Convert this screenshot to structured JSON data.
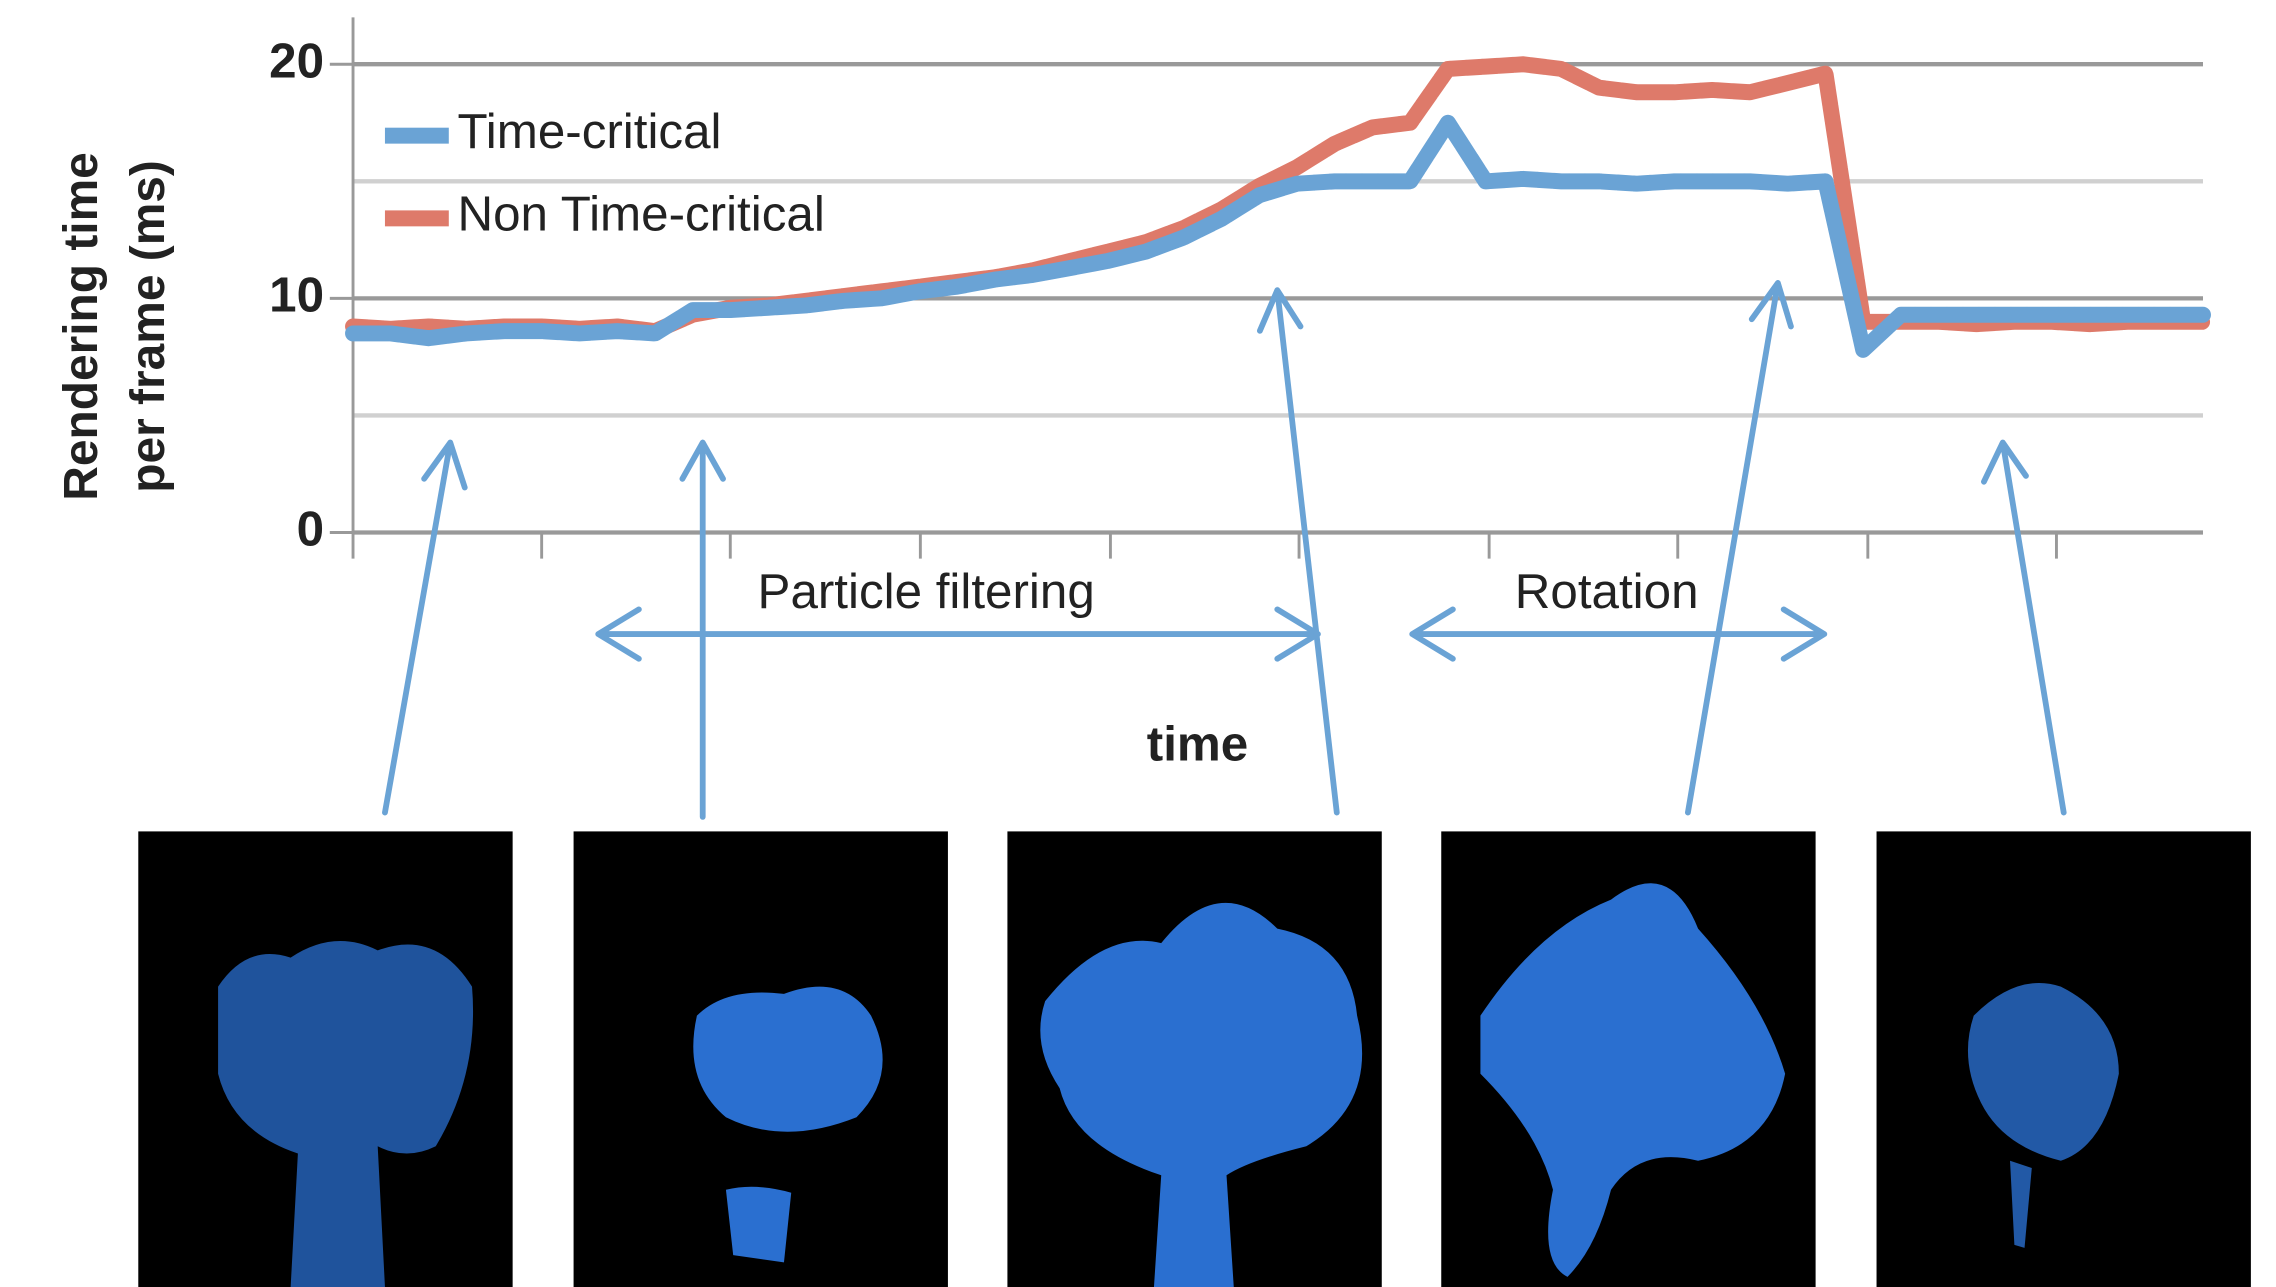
{
  "chart_data": {
    "type": "line",
    "ylabel": [
      "Rendering time",
      "per frame (ms)"
    ],
    "xlabel": "time",
    "annotations": [
      "Particle filtering",
      "Rotation"
    ],
    "ylim": [
      0,
      22
    ],
    "yticks": [
      0,
      10,
      20
    ],
    "minor_grid": [
      5,
      15
    ],
    "grid": true,
    "legend": "top-left",
    "series": [
      {
        "name": "Time-critical",
        "color": "#6aa3d5",
        "values": [
          8.5,
          8.5,
          8.3,
          8.5,
          8.6,
          8.6,
          8.5,
          8.6,
          8.5,
          9.5,
          9.5,
          9.6,
          9.7,
          9.9,
          10.0,
          10.3,
          10.5,
          10.8,
          11.0,
          11.3,
          11.6,
          12.0,
          12.6,
          13.4,
          14.4,
          14.9,
          15.0,
          15.0,
          15.0,
          17.5,
          15.0,
          15.1,
          15.0,
          15.0,
          14.9,
          15.0,
          15.0,
          15.0,
          14.9,
          15.0,
          7.8,
          9.3,
          9.3,
          9.3,
          9.3,
          9.3,
          9.3,
          9.3,
          9.3,
          9.3
        ]
      },
      {
        "name": "Non Time-critical",
        "color": "#de7a6a",
        "values": [
          8.8,
          8.7,
          8.8,
          8.7,
          8.8,
          8.8,
          8.7,
          8.8,
          8.6,
          9.3,
          9.6,
          9.7,
          9.9,
          10.1,
          10.3,
          10.5,
          10.7,
          10.9,
          11.2,
          11.6,
          12.0,
          12.4,
          13.0,
          13.8,
          14.8,
          15.6,
          16.6,
          17.3,
          17.5,
          19.8,
          19.9,
          20.0,
          19.8,
          19.0,
          18.8,
          18.8,
          18.9,
          18.8,
          19.2,
          19.6,
          9.0,
          9.0,
          9.0,
          8.9,
          9.0,
          9.0,
          8.9,
          9.0,
          9.0,
          9.0
        ]
      }
    ]
  }
}
